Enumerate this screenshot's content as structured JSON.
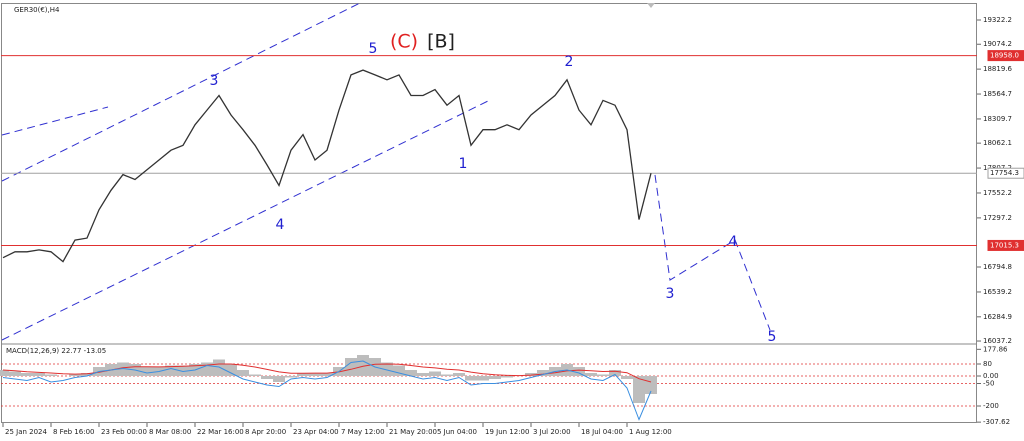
{
  "chart_data": [
    {
      "type": "line",
      "title": "GER30(€),H4",
      "color": "#333333",
      "categories": [
        "25 Jan 2024",
        null,
        null,
        null,
        "8 Feb 16:00",
        null,
        null,
        null,
        "23 Feb 00:00",
        null,
        null,
        null,
        "8 Mar 08:00",
        null,
        null,
        null,
        "22 Mar 16:00",
        null,
        null,
        null,
        "8 Apr 20:00",
        null,
        null,
        null,
        "23 Apr 04:00",
        null,
        null,
        null,
        "7 May 12:00",
        null,
        null,
        null,
        "21 May 20:00",
        null,
        null,
        null,
        "5 Jun 04:00",
        null,
        null,
        null,
        "19 Jun 12:00",
        null,
        null,
        null,
        "3 Jul 20:00",
        null,
        null,
        null,
        "18 Jul 04:00",
        null,
        null,
        null,
        "1 Aug 12:00",
        null,
        null
      ],
      "values": [
        16890,
        16950,
        16950,
        16970,
        16950,
        16850,
        17070,
        17090,
        17380,
        17580,
        17740,
        17690,
        17790,
        17890,
        17990,
        18040,
        18250,
        18400,
        18550,
        18350,
        18200,
        18040,
        17840,
        17630,
        17990,
        18150,
        17890,
        17990,
        18400,
        18760,
        18810,
        18760,
        18710,
        18760,
        18550,
        18550,
        18610,
        18450,
        18550,
        18040,
        18200,
        18200,
        18250,
        18200,
        18350,
        18450,
        18550,
        18710,
        18400,
        18250,
        18500,
        18450,
        18200,
        17280,
        17754.3
      ],
      "ylim": [
        16017,
        19486
      ],
      "yticks": [
        19322.2,
        19074.2,
        18819.6,
        18564.7,
        18309.7,
        18062.1,
        17807.2,
        17552.2,
        17297.2,
        16794.8,
        16539.2,
        16284.9,
        16037.2
      ],
      "hlines": [
        {
          "value": 18958.0,
          "label": "18958.0",
          "color": "#e03030"
        },
        {
          "value": 17754.3,
          "label": "17754.3",
          "color": "#a0a0a0"
        },
        {
          "value": 17015.3,
          "label": "17015.3",
          "color": "#e03030"
        }
      ],
      "annotations": [
        {
          "text": "5",
          "color": "#2020d0"
        },
        {
          "text": "(C)",
          "color": "#e02020"
        },
        {
          "text": "[B]",
          "color": "#202020"
        },
        {
          "text": "3",
          "color": "#2020d0"
        },
        {
          "text": "4",
          "color": "#2020d0"
        },
        {
          "text": "1",
          "color": "#2020d0"
        },
        {
          "text": "2",
          "color": "#2020d0"
        },
        {
          "text": "3",
          "color": "#2020d0"
        },
        {
          "text": "4",
          "color": "#2020d0"
        },
        {
          "text": "5",
          "color": "#2020d0"
        }
      ]
    },
    {
      "type": "macd",
      "title": "MACD(12,26,9) 22.77 -13.05",
      "ylim": [
        -320,
        200
      ],
      "yticks": [
        177.86,
        80,
        {
          "value": 0,
          "label": "0.00"
        },
        -50,
        -200,
        -307.62
      ],
      "grid": true,
      "series": [
        {
          "kind": "bar",
          "color": "#bdbdbd",
          "values": [
            40,
            30,
            20,
            20,
            10,
            0,
            10,
            20,
            60,
            80,
            90,
            80,
            60,
            60,
            70,
            70,
            80,
            90,
            110,
            80,
            40,
            10,
            -20,
            -40,
            -10,
            20,
            20,
            20,
            60,
            120,
            140,
            120,
            90,
            70,
            40,
            20,
            30,
            10,
            20,
            -30,
            -30,
            -20,
            -10,
            0,
            20,
            40,
            60,
            80,
            60,
            20,
            10,
            40,
            -20,
            -180,
            -120
          ]
        },
        {
          "kind": "line",
          "color": "#e03030",
          "values": [
            40,
            35,
            28,
            24,
            20,
            15,
            13,
            15,
            25,
            40,
            55,
            62,
            62,
            61,
            63,
            65,
            68,
            73,
            80,
            80,
            72,
            60,
            44,
            27,
            18,
            18,
            19,
            19,
            27,
            45,
            65,
            78,
            80,
            78,
            70,
            60,
            54,
            45,
            40,
            26,
            15,
            8,
            4,
            3,
            6,
            13,
            22,
            34,
            39,
            35,
            30,
            32,
            22,
            -18,
            -40
          ]
        },
        {
          "kind": "line",
          "color": "#3b8fe0",
          "values": [
            -10,
            -20,
            -30,
            -10,
            -40,
            -30,
            -10,
            0,
            30,
            40,
            50,
            40,
            20,
            30,
            50,
            30,
            40,
            70,
            60,
            20,
            -20,
            -40,
            -60,
            -70,
            -20,
            -10,
            -20,
            -10,
            30,
            90,
            100,
            60,
            40,
            20,
            0,
            -20,
            -10,
            -30,
            -10,
            -60,
            -50,
            -50,
            -40,
            -30,
            -10,
            10,
            30,
            40,
            20,
            -20,
            -30,
            10,
            -80,
            -290,
            -100
          ]
        }
      ]
    }
  ]
}
